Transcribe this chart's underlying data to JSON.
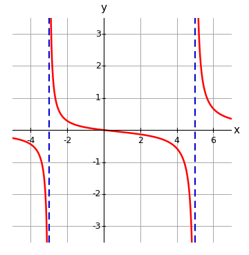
{
  "xlabel": "x",
  "ylabel": "y",
  "xlim": [
    -5.0,
    7.0
  ],
  "ylim": [
    -3.5,
    3.5
  ],
  "xticks": [
    -4,
    -2,
    2,
    4,
    6
  ],
  "yticks": [
    -3,
    -2,
    -1,
    1,
    2,
    3
  ],
  "asymptotes": [
    -3,
    5
  ],
  "curve_color": "#ff0000",
  "asymptote_color": "#0000cc",
  "bg_color": "#ffffff",
  "grid_color": "#999999",
  "axis_color": "#000000",
  "curve_linewidth": 1.8,
  "asymptote_linewidth": 1.5,
  "axis_linewidth": 0.8,
  "grid_linewidth": 0.6,
  "tick_fontsize": 9,
  "label_fontsize": 11
}
